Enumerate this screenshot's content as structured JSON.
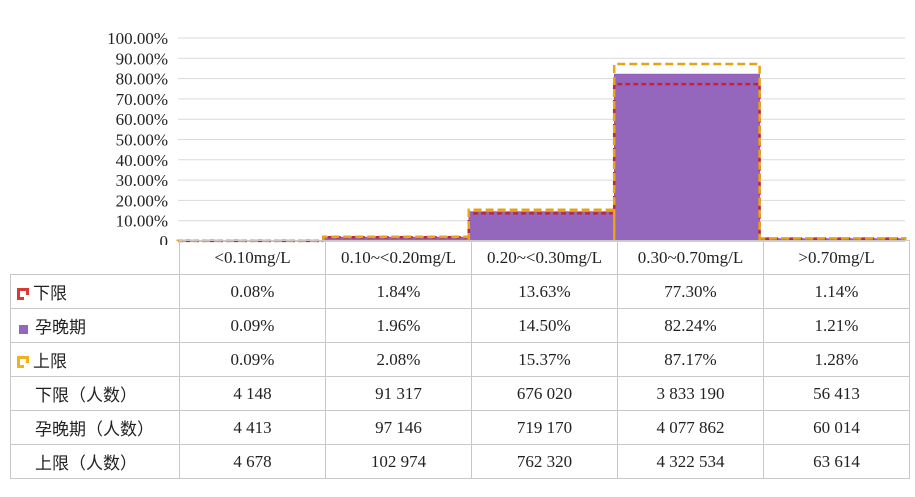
{
  "chart_data": {
    "type": "bar",
    "categories": [
      "<0.10mg/L",
      "0.10~<0.20mg/L",
      "0.20~<0.30mg/L",
      "0.30~0.70mg/L",
      ">0.70mg/L"
    ],
    "series": [
      {
        "name": "下限",
        "values": [
          0.08,
          1.84,
          13.63,
          77.3,
          1.14
        ],
        "color": "#c0253f",
        "style": "dashed-line"
      },
      {
        "name": "孕晚期",
        "values": [
          0.09,
          1.96,
          14.5,
          82.24,
          1.21
        ],
        "color": "#9467bd",
        "style": "bar"
      },
      {
        "name": "上限",
        "values": [
          0.09,
          2.08,
          15.37,
          87.17,
          1.28
        ],
        "color": "#e8a317",
        "style": "dashed-line"
      }
    ],
    "ylim": [
      0,
      100
    ],
    "yticks": [
      "0",
      "10.00%",
      "20.00%",
      "30.00%",
      "40.00%",
      "50.00%",
      "60.00%",
      "70.00%",
      "80.00%",
      "90.00%",
      "100.00%"
    ],
    "grid": true,
    "legend": "data-table"
  },
  "table": {
    "rows": [
      {
        "label": "下限",
        "key": "frame-red",
        "cells": [
          "0.08%",
          "1.84%",
          "13.63%",
          "77.30%",
          "1.14%"
        ]
      },
      {
        "label": "孕晚期",
        "key": "solid-purple",
        "cells": [
          "0.09%",
          "1.96%",
          "14.50%",
          "82.24%",
          "1.21%"
        ]
      },
      {
        "label": "上限",
        "key": "frame-orange",
        "cells": [
          "0.09%",
          "2.08%",
          "15.37%",
          "87.17%",
          "1.28%"
        ]
      },
      {
        "label": "下限（人数）",
        "cells": [
          "4 148",
          "91 317",
          "676 020",
          "3 833 190",
          "56 413"
        ]
      },
      {
        "label": "孕晚期（人数）",
        "cells": [
          "4 413",
          "97 146",
          "719 170",
          "4 077 862",
          "60 014"
        ]
      },
      {
        "label": "上限（人数）",
        "cells": [
          "4 678",
          "102 974",
          "762 320",
          "4 322 534",
          "63 614"
        ]
      }
    ]
  }
}
